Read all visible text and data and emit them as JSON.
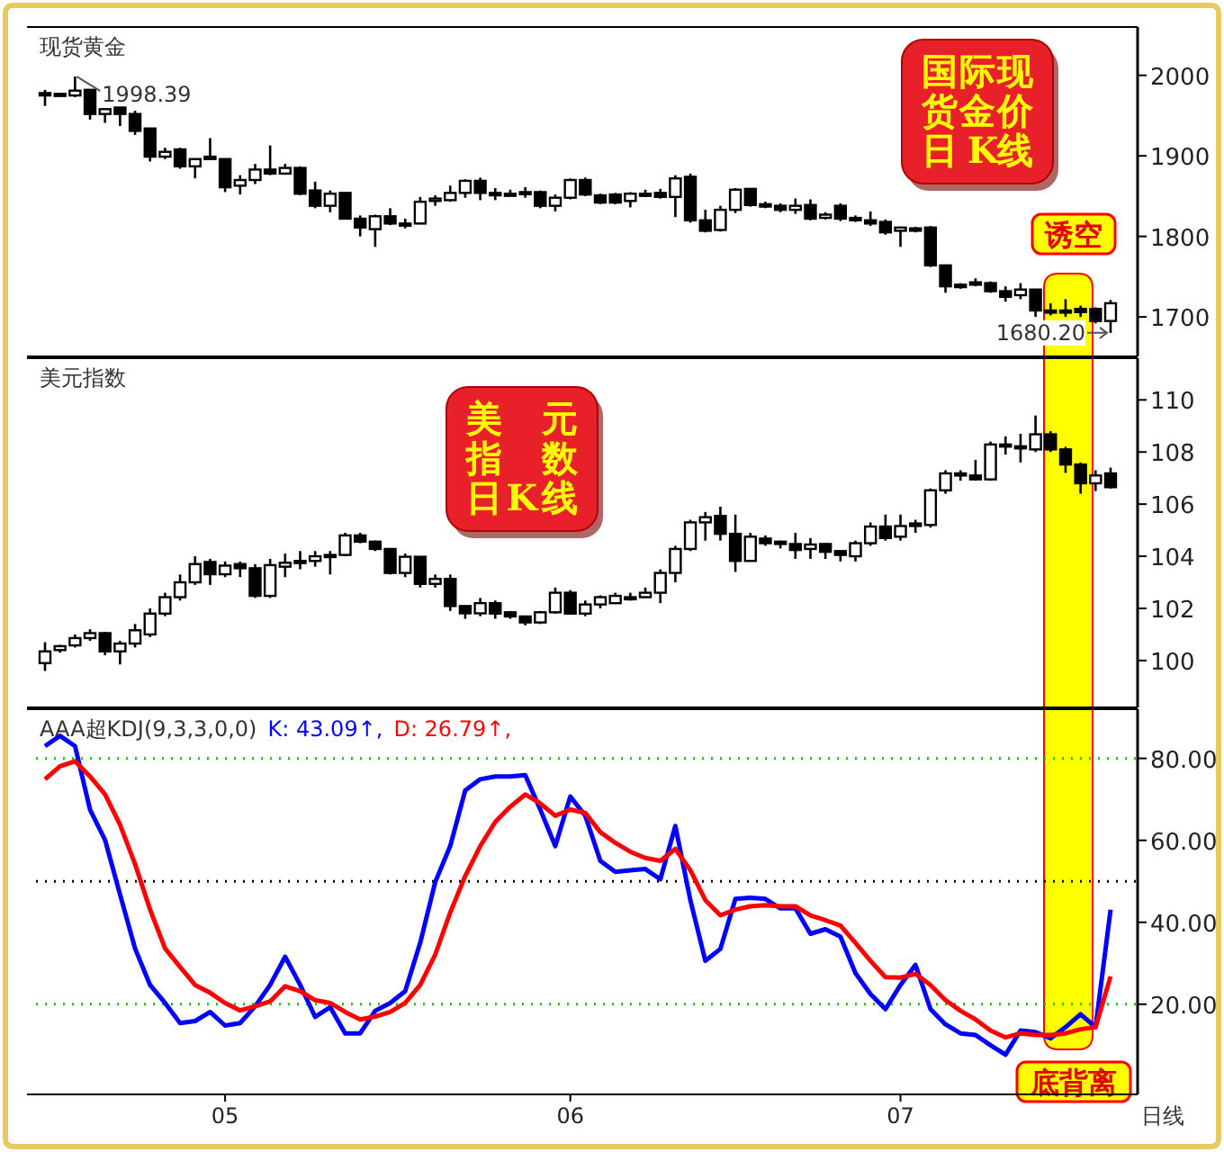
{
  "chart_data": [
    {
      "type": "candlestick",
      "title": "现货黄金",
      "tick_labels": "y",
      "categories": [
        null,
        null,
        null,
        null,
        null,
        null,
        null,
        null,
        null,
        null,
        null,
        null,
        null,
        null,
        null,
        null,
        null,
        null,
        null,
        null,
        null,
        null,
        null,
        null,
        null,
        null,
        null,
        null,
        null,
        null,
        null,
        null,
        null,
        null,
        null,
        null,
        null,
        null,
        null,
        null,
        null,
        null,
        null,
        null,
        null,
        null,
        null,
        null,
        null,
        null,
        null,
        null,
        null,
        null,
        null,
        null,
        null,
        null,
        null,
        null,
        null,
        null,
        null,
        null,
        null,
        null,
        null,
        null,
        null,
        null,
        null,
        null
      ],
      "ylim": [
        1651,
        2060
      ],
      "yticks": [
        1700,
        1800,
        1900,
        2000
      ],
      "ohlc": [
        [
          1978,
          1982,
          1962,
          1975
        ],
        [
          1977,
          1977,
          1975,
          1976
        ],
        [
          1975,
          1998.39,
          1973,
          1981
        ],
        [
          1982,
          1982,
          1945,
          1952
        ],
        [
          1952,
          1958,
          1941,
          1958
        ],
        [
          1960,
          1960,
          1937,
          1952
        ],
        [
          1952,
          1956,
          1926,
          1931
        ],
        [
          1934,
          1934,
          1893,
          1899
        ],
        [
          1899,
          1910,
          1896,
          1905
        ],
        [
          1908,
          1910,
          1884,
          1887
        ],
        [
          1887,
          1897,
          1872,
          1896
        ],
        [
          1899,
          1922,
          1895,
          1896
        ],
        [
          1896,
          1896,
          1855,
          1861
        ],
        [
          1863,
          1876,
          1852,
          1870
        ],
        [
          1870,
          1890,
          1865,
          1883
        ],
        [
          1883,
          1913,
          1876,
          1878
        ],
        [
          1878,
          1890,
          1877,
          1885
        ],
        [
          1885,
          1887,
          1851,
          1853
        ],
        [
          1857,
          1868,
          1835,
          1838
        ],
        [
          1838,
          1857,
          1830,
          1853
        ],
        [
          1854,
          1854,
          1822,
          1822
        ],
        [
          1822,
          1826,
          1800,
          1811
        ],
        [
          1809,
          1827,
          1787,
          1825
        ],
        [
          1825,
          1835,
          1814,
          1816
        ],
        [
          1816,
          1822,
          1810,
          1816
        ],
        [
          1816,
          1849,
          1815,
          1843
        ],
        [
          1844,
          1851,
          1838,
          1847
        ],
        [
          1845,
          1863,
          1843,
          1854
        ],
        [
          1854,
          1871,
          1848,
          1869
        ],
        [
          1869,
          1873,
          1845,
          1854
        ],
        [
          1854,
          1860,
          1845,
          1851
        ],
        [
          1853,
          1858,
          1850,
          1853
        ],
        [
          1854,
          1861,
          1848,
          1855
        ],
        [
          1855,
          1857,
          1835,
          1838
        ],
        [
          1838,
          1852,
          1831,
          1848
        ],
        [
          1848,
          1872,
          1846,
          1870
        ],
        [
          1870,
          1873,
          1850,
          1852
        ],
        [
          1851,
          1853,
          1840,
          1842
        ],
        [
          1852,
          1854,
          1840,
          1842
        ],
        [
          1844,
          1855,
          1836,
          1853
        ],
        [
          1853,
          1858,
          1849,
          1853
        ],
        [
          1854,
          1859,
          1847,
          1849
        ],
        [
          1849,
          1876,
          1824,
          1872
        ],
        [
          1874,
          1878,
          1817,
          1820
        ],
        [
          1820,
          1833,
          1805,
          1807
        ],
        [
          1808,
          1838,
          1806,
          1833
        ],
        [
          1833,
          1860,
          1829,
          1858
        ],
        [
          1859,
          1860,
          1837,
          1839
        ],
        [
          1840,
          1843,
          1835,
          1837
        ],
        [
          1838,
          1841,
          1830,
          1833
        ],
        [
          1833,
          1847,
          1828,
          1838
        ],
        [
          1839,
          1846,
          1820,
          1822
        ],
        [
          1823,
          1830,
          1821,
          1827
        ],
        [
          1838,
          1841,
          1819,
          1822
        ],
        [
          1823,
          1826,
          1818,
          1820
        ],
        [
          1820,
          1831,
          1813,
          1816
        ],
        [
          1818,
          1821,
          1802,
          1805
        ],
        [
          1807,
          1812,
          1787,
          1811
        ],
        [
          1810,
          1812,
          1805,
          1807
        ],
        [
          1811,
          1813,
          1762,
          1764
        ],
        [
          1764,
          1764,
          1730,
          1738
        ],
        [
          1740,
          1742,
          1735,
          1737
        ],
        [
          1743,
          1748,
          1738,
          1740
        ],
        [
          1742,
          1744,
          1730,
          1732
        ],
        [
          1732,
          1738,
          1719,
          1725
        ],
        [
          1727,
          1742,
          1722,
          1734
        ],
        [
          1734,
          1734,
          1700,
          1708
        ],
        [
          1708,
          1717,
          1702,
          1708
        ],
        [
          1708,
          1722,
          1700,
          1707
        ],
        [
          1710,
          1714,
          1700,
          1706
        ],
        [
          1710,
          1712,
          1692,
          1695
        ],
        [
          1695,
          1721,
          1680.2,
          1717
        ]
      ],
      "annotations": [
        "国际现货金价日 K线",
        "1998.39",
        "1680.20",
        "诱空"
      ]
    },
    {
      "type": "candlestick",
      "title": "美元指数",
      "tick_labels": "y",
      "categories": [
        null,
        null,
        null,
        null,
        null,
        null,
        null,
        null,
        null,
        null,
        null,
        null,
        null,
        null,
        null,
        null,
        null,
        null,
        null,
        null,
        null,
        null,
        null,
        null,
        null,
        null,
        null,
        null,
        null,
        null,
        null,
        null,
        null,
        null,
        null,
        null,
        null,
        null,
        null,
        null,
        null,
        null,
        null,
        null,
        null,
        null,
        null,
        null,
        null,
        null,
        null,
        null,
        null,
        null,
        null,
        null,
        null,
        null,
        null,
        null,
        null,
        null,
        null,
        null,
        null,
        null,
        null,
        null,
        null,
        null,
        null,
        null
      ],
      "ylim": [
        98.2,
        111.6
      ],
      "yticks": [
        100,
        102,
        104,
        106,
        108,
        110
      ],
      "ohlc": [
        [
          99.9,
          100.7,
          99.6,
          100.35
        ],
        [
          100.4,
          100.6,
          100.3,
          100.55
        ],
        [
          100.58,
          101.0,
          100.5,
          100.86
        ],
        [
          100.86,
          101.2,
          100.75,
          101.05
        ],
        [
          101.05,
          101.1,
          100.2,
          100.35
        ],
        [
          100.35,
          100.75,
          99.85,
          100.65
        ],
        [
          100.65,
          101.4,
          100.5,
          101.16
        ],
        [
          101.0,
          102.0,
          100.9,
          101.8
        ],
        [
          101.8,
          102.6,
          101.7,
          102.43
        ],
        [
          102.43,
          103.3,
          102.3,
          103.0
        ],
        [
          103.0,
          104.0,
          102.9,
          103.7
        ],
        [
          103.78,
          103.9,
          102.9,
          103.31
        ],
        [
          103.31,
          103.8,
          103.2,
          103.64
        ],
        [
          103.7,
          103.8,
          103.2,
          103.54
        ],
        [
          103.54,
          103.7,
          102.4,
          102.48
        ],
        [
          102.48,
          103.9,
          102.4,
          103.66
        ],
        [
          103.6,
          104.1,
          103.2,
          103.75
        ],
        [
          103.74,
          104.2,
          103.5,
          103.82
        ],
        [
          103.82,
          104.2,
          103.6,
          104.0
        ],
        [
          104.05,
          104.2,
          103.3,
          103.98
        ],
        [
          104.05,
          104.9,
          104.0,
          104.8
        ],
        [
          104.8,
          104.9,
          104.5,
          104.56
        ],
        [
          104.56,
          104.6,
          104.2,
          104.28
        ],
        [
          104.28,
          104.3,
          103.3,
          103.36
        ],
        [
          103.36,
          104.1,
          103.2,
          103.98
        ],
        [
          103.98,
          104.0,
          102.8,
          102.94
        ],
        [
          102.94,
          103.3,
          102.8,
          103.13
        ],
        [
          103.13,
          103.3,
          101.9,
          102.09
        ],
        [
          102.09,
          102.1,
          101.6,
          101.81
        ],
        [
          101.81,
          102.4,
          101.7,
          102.2
        ],
        [
          102.2,
          102.3,
          101.6,
          101.8
        ],
        [
          101.85,
          101.9,
          101.6,
          101.69
        ],
        [
          101.69,
          101.7,
          101.35,
          101.46
        ],
        [
          101.46,
          101.9,
          101.4,
          101.85
        ],
        [
          101.85,
          102.8,
          101.8,
          102.6
        ],
        [
          102.6,
          102.7,
          101.8,
          101.8
        ],
        [
          101.8,
          102.3,
          101.7,
          102.15
        ],
        [
          102.15,
          102.5,
          102.0,
          102.43
        ],
        [
          102.2,
          102.6,
          102.2,
          102.48
        ],
        [
          102.43,
          102.6,
          102.3,
          102.43
        ],
        [
          102.43,
          102.8,
          102.4,
          102.6
        ],
        [
          102.6,
          103.5,
          102.2,
          103.36
        ],
        [
          103.36,
          104.4,
          103.0,
          104.28
        ],
        [
          104.28,
          105.4,
          104.2,
          105.3
        ],
        [
          105.3,
          105.7,
          104.6,
          105.5
        ],
        [
          105.55,
          105.9,
          104.6,
          104.86
        ],
        [
          104.86,
          105.6,
          103.4,
          103.82
        ],
        [
          103.82,
          104.9,
          103.8,
          104.75
        ],
        [
          104.68,
          104.8,
          104.4,
          104.5
        ],
        [
          104.56,
          104.6,
          104.3,
          104.47
        ],
        [
          104.47,
          104.9,
          103.9,
          104.24
        ],
        [
          104.28,
          104.7,
          103.9,
          104.45
        ],
        [
          104.47,
          104.5,
          103.9,
          104.17
        ],
        [
          104.2,
          104.2,
          103.8,
          104.05
        ],
        [
          104.0,
          104.6,
          103.8,
          104.5
        ],
        [
          104.5,
          105.3,
          104.4,
          105.14
        ],
        [
          105.14,
          105.6,
          104.6,
          104.7
        ],
        [
          104.75,
          105.6,
          104.6,
          105.16
        ],
        [
          105.26,
          105.4,
          104.9,
          105.16
        ],
        [
          105.2,
          106.6,
          105.1,
          106.53
        ],
        [
          106.53,
          107.3,
          106.4,
          107.18
        ],
        [
          107.18,
          107.3,
          106.9,
          107.18
        ],
        [
          107.1,
          107.7,
          106.9,
          106.95
        ],
        [
          106.95,
          108.4,
          106.9,
          108.29
        ],
        [
          108.29,
          108.6,
          107.9,
          108.22
        ],
        [
          108.22,
          108.7,
          107.6,
          108.15
        ],
        [
          108.1,
          109.4,
          108.0,
          108.68
        ],
        [
          108.68,
          108.8,
          108.0,
          108.1
        ],
        [
          108.1,
          108.2,
          107.2,
          107.52
        ],
        [
          107.52,
          107.6,
          106.4,
          106.8
        ],
        [
          106.8,
          107.3,
          106.5,
          107.1
        ],
        [
          107.18,
          107.4,
          106.6,
          106.65
        ]
      ],
      "annotations": [
        "美元指数日K线"
      ]
    },
    {
      "type": "line",
      "title": "AAA超KDJ(9,3,3,0,0)",
      "xlabel": "日线",
      "legend": "top left",
      "categories": [
        null,
        null,
        null,
        null,
        null,
        null,
        null,
        null,
        null,
        null,
        null,
        null,
        "05",
        null,
        null,
        null,
        null,
        null,
        null,
        null,
        null,
        null,
        null,
        null,
        null,
        null,
        null,
        null,
        null,
        null,
        null,
        null,
        null,
        null,
        null,
        "06",
        null,
        null,
        null,
        null,
        null,
        null,
        null,
        null,
        null,
        null,
        null,
        null,
        null,
        null,
        null,
        null,
        null,
        null,
        null,
        null,
        null,
        "07",
        null,
        null,
        null,
        null,
        null,
        null,
        null,
        null,
        null,
        null,
        null,
        null,
        null,
        null
      ],
      "ylim": [
        -2,
        92
      ],
      "yticks": [
        {
          "value": 20,
          "label": "20.00"
        },
        {
          "value": 40,
          "label": "40.00"
        },
        {
          "value": 60,
          "label": "60.00"
        },
        {
          "value": 80,
          "label": "80.00"
        }
      ],
      "series": [
        {
          "name": "K: 43.09↑,",
          "color": "#0000ff",
          "values": [
            83.0,
            85.5,
            83.0,
            67.5,
            60.1,
            46.8,
            33.6,
            24.7,
            20.3,
            15.4,
            15.9,
            18.1,
            14.8,
            15.4,
            19.5,
            24.7,
            31.6,
            24.7,
            16.9,
            19.3,
            12.9,
            12.9,
            18.4,
            20.3,
            23.2,
            35.0,
            49.8,
            58.6,
            72.2,
            74.9,
            75.6,
            75.6,
            75.9,
            67.5,
            58.6,
            70.7,
            66.0,
            55.0,
            52.3,
            52.7,
            53.0,
            50.5,
            63.5,
            45.4,
            30.6,
            33.5,
            45.7,
            46.0,
            45.7,
            43.4,
            43.4,
            37.2,
            38.3,
            36.5,
            27.6,
            22.5,
            18.8,
            24.7,
            29.6,
            18.8,
            15.1,
            12.9,
            12.5,
            10.0,
            7.7,
            13.6,
            13.2,
            11.7,
            14.4,
            17.6,
            14.4,
            43.09
          ]
        },
        {
          "name": "D: 26.79↑,",
          "color": "#ff0000",
          "values": [
            74.9,
            78.1,
            79.3,
            75.6,
            71.2,
            63.8,
            54.2,
            43.1,
            33.6,
            29.1,
            24.7,
            22.8,
            20.3,
            18.5,
            19.5,
            20.7,
            24.4,
            23.2,
            21.0,
            20.3,
            18.1,
            16.3,
            17.0,
            18.1,
            20.3,
            24.7,
            32.1,
            42.4,
            51.3,
            58.6,
            64.5,
            68.2,
            71.2,
            69.0,
            66.0,
            67.5,
            66.7,
            62.0,
            59.4,
            57.2,
            55.7,
            55.0,
            57.9,
            52.7,
            45.4,
            41.7,
            43.1,
            43.9,
            44.2,
            43.9,
            43.9,
            41.7,
            40.5,
            39.2,
            35.0,
            30.6,
            26.6,
            26.5,
            27.4,
            24.7,
            21.0,
            18.4,
            16.3,
            13.6,
            11.9,
            12.9,
            12.5,
            12.5,
            12.9,
            13.9,
            14.4,
            26.79
          ]
        }
      ],
      "ref_lines": [
        {
          "axis": "y",
          "value": 80,
          "color": "#00cc00",
          "line_style": "dotted"
        },
        {
          "axis": "y",
          "value": 50,
          "color": "#000000",
          "line_style": "dotted"
        },
        {
          "axis": "y",
          "value": 20,
          "color": "#00cc00",
          "line_style": "dotted"
        }
      ],
      "annotations": [
        "底背离"
      ]
    }
  ]
}
